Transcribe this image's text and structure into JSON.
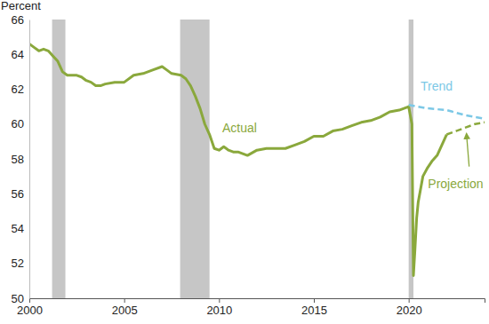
{
  "chart_data": {
    "type": "line",
    "y_label": "Percent",
    "xlim": [
      2000,
      2024
    ],
    "xticks": [
      2000,
      2005,
      2010,
      2015,
      2020
    ],
    "ylim": [
      50,
      66
    ],
    "yticks": [
      50,
      52,
      54,
      56,
      58,
      60,
      62,
      64,
      66
    ],
    "grid": false,
    "recessions": [
      [
        2001.2,
        2001.9
      ],
      [
        2007.95,
        2009.5
      ],
      [
        2020.0,
        2020.25
      ]
    ],
    "recession_color": "#c6c6c6",
    "series": [
      {
        "name": "Actual",
        "color": "#8aa83c",
        "line_style": "solid",
        "x": [
          2000.0,
          2000.25,
          2000.5,
          2000.75,
          2001.0,
          2001.25,
          2001.5,
          2001.75,
          2002.0,
          2002.25,
          2002.5,
          2002.75,
          2003.0,
          2003.25,
          2003.5,
          2003.75,
          2004.0,
          2004.5,
          2005.0,
          2005.5,
          2006.0,
          2006.5,
          2007.0,
          2007.25,
          2007.5,
          2008.0,
          2008.25,
          2008.5,
          2008.75,
          2009.0,
          2009.25,
          2009.5,
          2009.75,
          2010.0,
          2010.25,
          2010.5,
          2010.75,
          2011.0,
          2011.5,
          2012.0,
          2012.5,
          2013.0,
          2013.5,
          2014.0,
          2014.5,
          2015.0,
          2015.5,
          2016.0,
          2016.5,
          2017.0,
          2017.5,
          2018.0,
          2018.5,
          2019.0,
          2019.5,
          2020.0,
          2020.17,
          2020.25,
          2020.33,
          2020.42,
          2020.5,
          2020.75,
          2021.0,
          2021.25,
          2021.5,
          2021.75,
          2022.0
        ],
        "values": [
          64.6,
          64.4,
          64.2,
          64.3,
          64.2,
          63.9,
          63.6,
          63.0,
          62.8,
          62.8,
          62.8,
          62.7,
          62.5,
          62.4,
          62.2,
          62.2,
          62.3,
          62.4,
          62.4,
          62.8,
          62.9,
          63.1,
          63.3,
          63.1,
          62.9,
          62.8,
          62.6,
          62.2,
          61.6,
          60.9,
          60.0,
          59.4,
          58.6,
          58.5,
          58.7,
          58.5,
          58.4,
          58.4,
          58.2,
          58.5,
          58.6,
          58.6,
          58.6,
          58.8,
          59.0,
          59.3,
          59.3,
          59.6,
          59.7,
          59.9,
          60.1,
          60.2,
          60.4,
          60.7,
          60.8,
          61.0,
          60.0,
          51.3,
          52.8,
          54.6,
          55.5,
          57.0,
          57.5,
          57.9,
          58.2,
          58.8,
          59.4
        ]
      },
      {
        "name": "Trend",
        "color": "#7cc8e6",
        "line_style": "dashed",
        "x": [
          2020.0,
          2021.0,
          2022.0,
          2023.0,
          2024.0
        ],
        "values": [
          61.1,
          60.9,
          60.8,
          60.5,
          60.3
        ]
      },
      {
        "name": "Projection",
        "color": "#8aa83c",
        "line_style": "dashed",
        "x": [
          2022.0,
          2022.5,
          2023.0,
          2023.5,
          2024.0
        ],
        "values": [
          59.4,
          59.6,
          59.8,
          60.0,
          60.1
        ]
      }
    ]
  }
}
